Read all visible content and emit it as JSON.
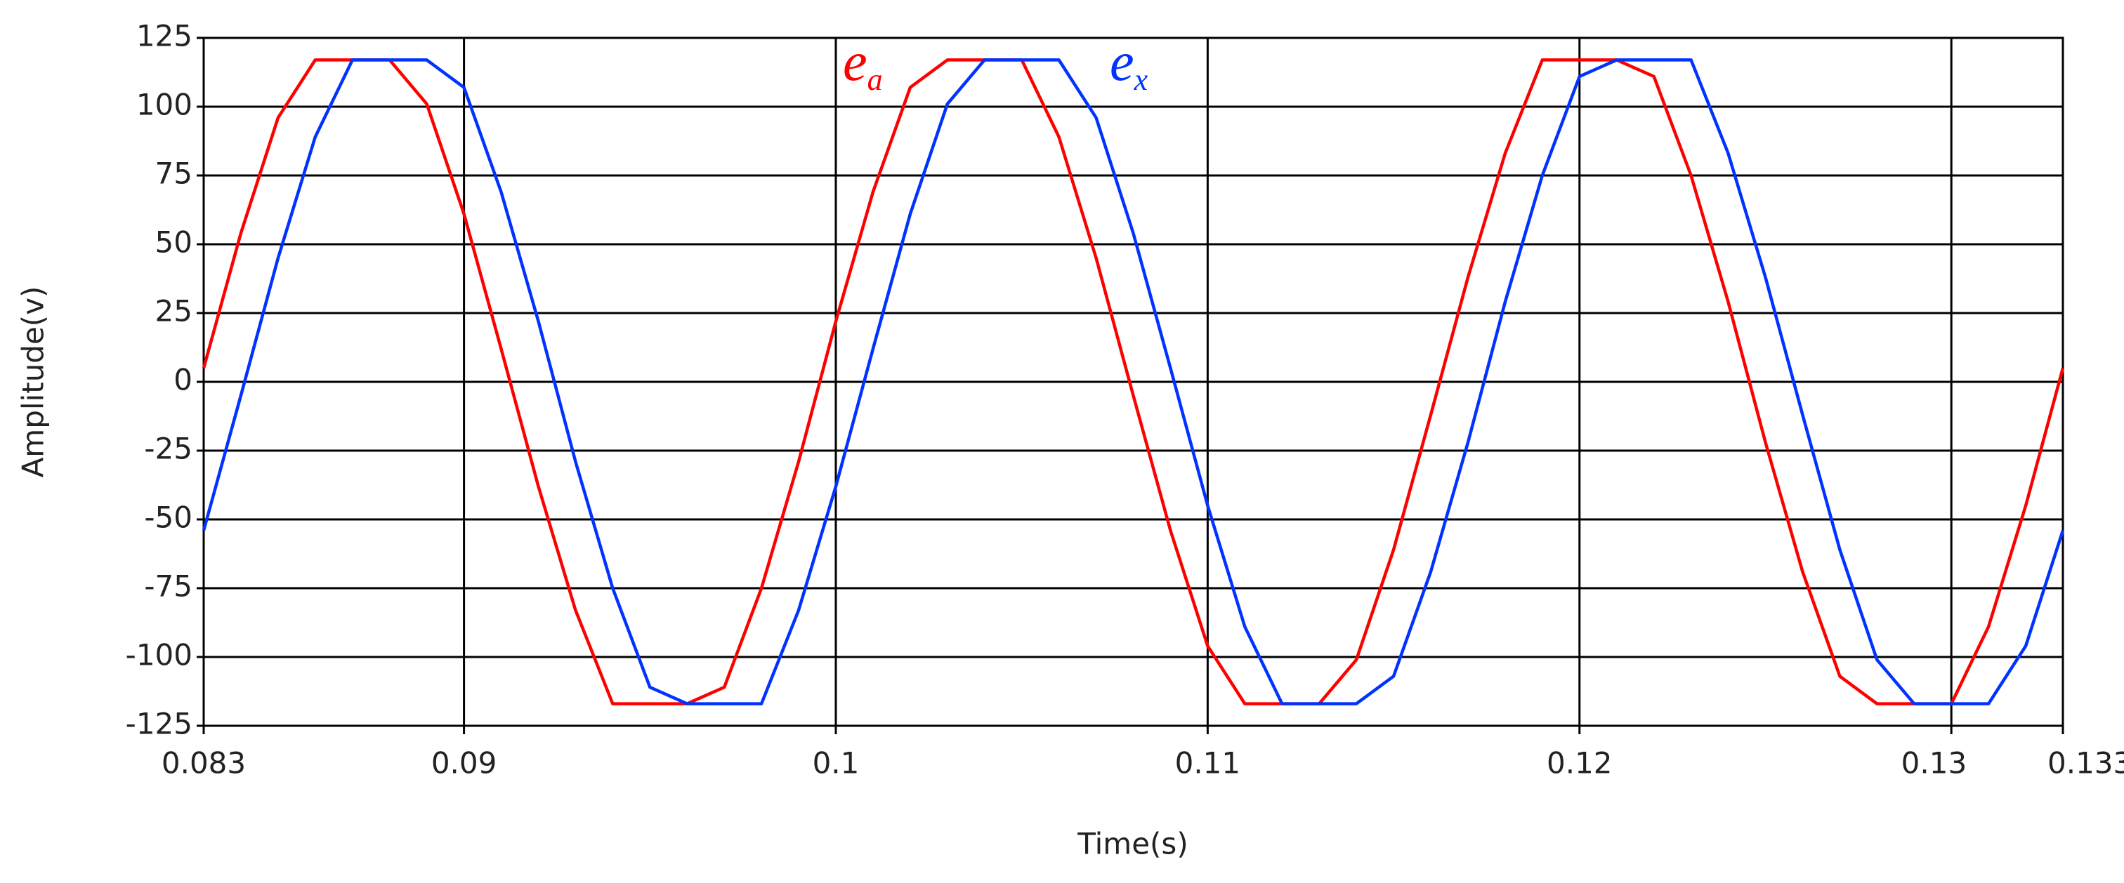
{
  "chart_data": {
    "type": "line",
    "xlabel": "Time(s)",
    "ylabel": "Amplitude(v)",
    "x": [
      0.083,
      0.084,
      0.085,
      0.086,
      0.087,
      0.088,
      0.089,
      0.09,
      0.091,
      0.092,
      0.093,
      0.094,
      0.095,
      0.096,
      0.097,
      0.098,
      0.099,
      0.1,
      0.101,
      0.102,
      0.103,
      0.104,
      0.105,
      0.106,
      0.107,
      0.108,
      0.109,
      0.11,
      0.111,
      0.112,
      0.113,
      0.114,
      0.115,
      0.116,
      0.117,
      0.118,
      0.119,
      0.12,
      0.121,
      0.122,
      0.123,
      0.124,
      0.125,
      0.126,
      0.127,
      0.128,
      0.129,
      0.13,
      0.131,
      0.132,
      0.133
    ],
    "series": [
      {
        "name": "ea",
        "color": "#ff0000",
        "values": [
          5,
          54,
          96,
          117,
          117,
          117,
          101,
          61,
          12,
          -38,
          -83,
          -117,
          -117,
          -117,
          -111,
          -75,
          -29,
          22,
          69,
          107,
          117,
          117,
          117,
          89,
          45,
          -5,
          -54,
          -96,
          -117,
          -117,
          -117,
          -101,
          -61,
          -12,
          38,
          83,
          117,
          117,
          117,
          111,
          75,
          29,
          -22,
          -69,
          -107,
          -117,
          -117,
          -117,
          -89,
          -45,
          5
        ]
      },
      {
        "name": "ex",
        "color": "#0033ff",
        "values": [
          -54,
          -5,
          45,
          89,
          117,
          117,
          117,
          107,
          69,
          22,
          -29,
          -75,
          -111,
          -117,
          -117,
          -117,
          -83,
          -38,
          12,
          61,
          101,
          117,
          117,
          117,
          96,
          54,
          5,
          -45,
          -89,
          -117,
          -117,
          -117,
          -107,
          -69,
          -22,
          29,
          75,
          111,
          117,
          117,
          117,
          83,
          38,
          -12,
          -61,
          -101,
          -117,
          -117,
          -117,
          -96,
          -54
        ]
      }
    ],
    "xlim": [
      0.083,
      0.133
    ],
    "xticks": [
      0.083,
      0.09,
      0.1,
      0.11,
      0.12,
      0.13,
      0.133
    ],
    "ylim": [
      -125,
      125
    ],
    "yticks": [
      -125,
      -100,
      -75,
      -50,
      -25,
      0,
      25,
      50,
      75,
      100,
      125
    ],
    "grid": true
  }
}
